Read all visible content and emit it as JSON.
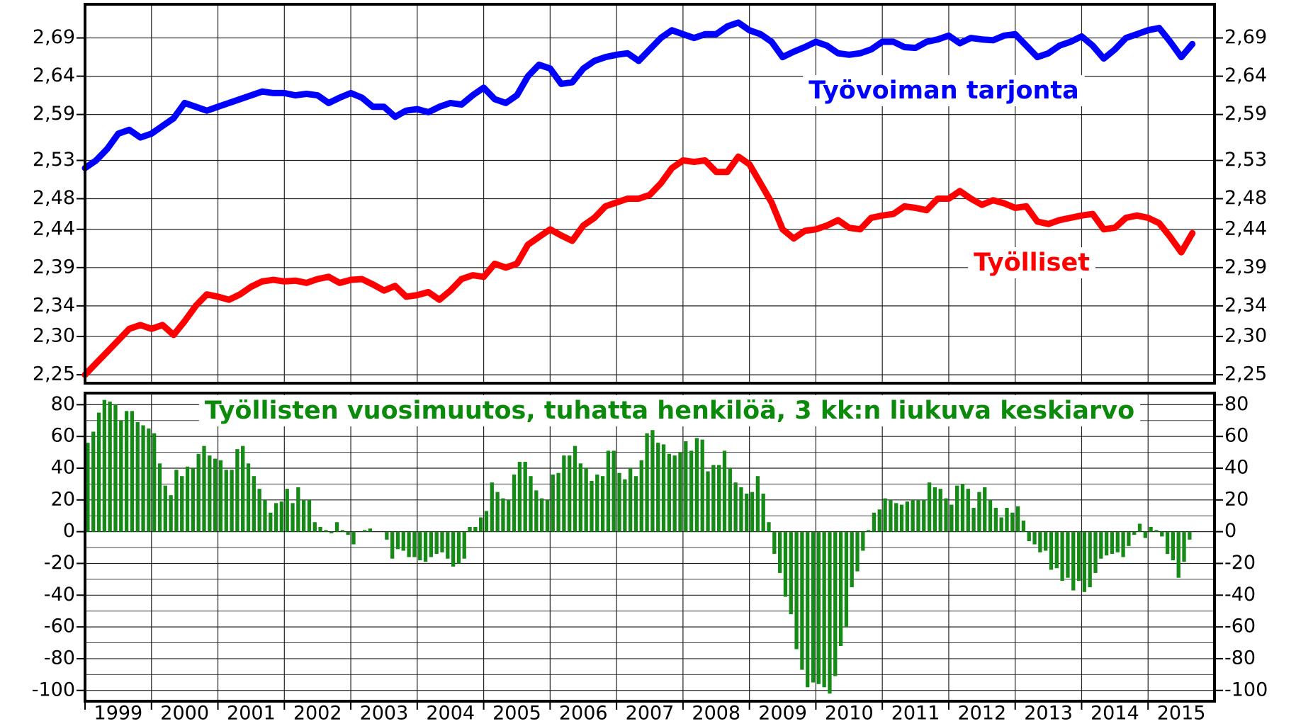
{
  "chart_data": [
    {
      "type": "line",
      "xlim": [
        1999,
        2016
      ],
      "xticks": [
        1999,
        2000,
        2001,
        2002,
        2003,
        2004,
        2005,
        2006,
        2007,
        2008,
        2009,
        2010,
        2011,
        2012,
        2013,
        2014,
        2015
      ],
      "ylim": [
        2.239,
        2.734
      ],
      "yticks": [
        {
          "value": 2.25,
          "label": "2,25"
        },
        {
          "value": 2.3,
          "label": "2,30"
        },
        {
          "value": 2.34,
          "label": "2,34"
        },
        {
          "value": 2.39,
          "label": "2,39"
        },
        {
          "value": 2.44,
          "label": "2,44"
        },
        {
          "value": 2.48,
          "label": "2,48"
        },
        {
          "value": 2.53,
          "label": "2,53"
        },
        {
          "value": 2.59,
          "label": "2,59"
        },
        {
          "value": 2.64,
          "label": "2,64"
        },
        {
          "value": 2.69,
          "label": "2,69"
        }
      ],
      "grid": true,
      "series": [
        {
          "name": "Työvoiman tarjonta",
          "color": "#0000ff",
          "values": [
            2.52,
            2.53,
            2.545,
            2.565,
            2.57,
            2.56,
            2.565,
            2.575,
            2.585,
            2.605,
            2.6,
            2.595,
            2.6,
            2.605,
            2.61,
            2.615,
            2.62,
            2.618,
            2.618,
            2.615,
            2.617,
            2.615,
            2.605,
            2.612,
            2.618,
            2.612,
            2.6,
            2.6,
            2.587,
            2.595,
            2.597,
            2.593,
            2.6,
            2.605,
            2.603,
            2.615,
            2.625,
            2.61,
            2.605,
            2.615,
            2.64,
            2.655,
            2.65,
            2.63,
            2.632,
            2.65,
            2.66,
            2.665,
            2.668,
            2.67,
            2.66,
            2.675,
            2.69,
            2.7,
            2.695,
            2.69,
            2.695,
            2.695,
            2.705,
            2.71,
            2.7,
            2.695,
            2.685,
            2.665,
            2.672,
            2.678,
            2.685,
            2.68,
            2.67,
            2.668,
            2.67,
            2.675,
            2.685,
            2.685,
            2.678,
            2.677,
            2.685,
            2.688,
            2.693,
            2.683,
            2.69,
            2.688,
            2.687,
            2.693,
            2.695,
            2.68,
            2.665,
            2.67,
            2.68,
            2.685,
            2.692,
            2.68,
            2.663,
            2.675,
            2.69,
            2.695,
            2.7,
            2.703,
            2.685,
            2.665,
            2.682
          ]
        },
        {
          "name": "Työlliset",
          "color": "#ff0000",
          "values": [
            2.25,
            2.265,
            2.28,
            2.295,
            2.31,
            2.315,
            2.31,
            2.315,
            2.302,
            2.32,
            2.34,
            2.355,
            2.352,
            2.348,
            2.355,
            2.365,
            2.372,
            2.374,
            2.372,
            2.373,
            2.37,
            2.375,
            2.378,
            2.37,
            2.374,
            2.375,
            2.368,
            2.36,
            2.366,
            2.352,
            2.354,
            2.358,
            2.348,
            2.36,
            2.375,
            2.38,
            2.378,
            2.395,
            2.39,
            2.395,
            2.42,
            2.43,
            2.44,
            2.432,
            2.425,
            2.445,
            2.455,
            2.47,
            2.475,
            2.48,
            2.48,
            2.485,
            2.5,
            2.52,
            2.53,
            2.528,
            2.53,
            2.515,
            2.515,
            2.535,
            2.525,
            2.5,
            2.475,
            2.44,
            2.428,
            2.438,
            2.44,
            2.445,
            2.452,
            2.442,
            2.44,
            2.455,
            2.458,
            2.46,
            2.47,
            2.468,
            2.465,
            2.48,
            2.48,
            2.49,
            2.48,
            2.472,
            2.478,
            2.474,
            2.468,
            2.47,
            2.45,
            2.447,
            2.452,
            2.455,
            2.458,
            2.46,
            2.44,
            2.442,
            2.455,
            2.458,
            2.455,
            2.448,
            2.43,
            2.41,
            2.435
          ]
        }
      ]
    },
    {
      "type": "bar",
      "title": "Työllisten vuosimuutos, tuhatta henkilöä, 3 kk:n liukuva keskiarvo",
      "color": "#168a16",
      "xlim": [
        1999,
        2016
      ],
      "xticks": [
        1999,
        2000,
        2001,
        2002,
        2003,
        2004,
        2005,
        2006,
        2007,
        2008,
        2009,
        2010,
        2011,
        2012,
        2013,
        2014,
        2015
      ],
      "ylim": [
        -106.8,
        87.3
      ],
      "yticks": [
        -100,
        -80,
        -60,
        -40,
        -20,
        0,
        20,
        40,
        60,
        80
      ],
      "yticks_minor": [
        -90,
        -70,
        -50,
        -30,
        -10,
        10,
        30,
        50,
        70
      ],
      "grid": true,
      "values": [
        56,
        63,
        75,
        83,
        82,
        80,
        70,
        76,
        76,
        69,
        67,
        65,
        62,
        43,
        29,
        23,
        39,
        35,
        41,
        40,
        49,
        54,
        48,
        46,
        45,
        39,
        39,
        52,
        54,
        43,
        35,
        27,
        20,
        12,
        18,
        19,
        27,
        18,
        28,
        20,
        20,
        6,
        3,
        1,
        -1,
        6,
        1,
        -2,
        -8,
        0,
        1,
        2,
        0,
        0,
        -5,
        -17,
        -11,
        -12,
        -16,
        -16,
        -18,
        -19,
        -16,
        -14,
        -13,
        -17,
        -22,
        -20,
        -17,
        3,
        3,
        9,
        13,
        31,
        25,
        21,
        20,
        36,
        44,
        44,
        35,
        26,
        21,
        20,
        36,
        37,
        48,
        48,
        54,
        43,
        40,
        32,
        36,
        35,
        51,
        51,
        37,
        33,
        40,
        35,
        45,
        62,
        64,
        56,
        55,
        49,
        48,
        50,
        57,
        51,
        59,
        58,
        38,
        42,
        42,
        51,
        40,
        31,
        28,
        24,
        25,
        35,
        24,
        6,
        -14,
        -26,
        -41,
        -52,
        -74,
        -87,
        -98,
        -95,
        -96,
        -98,
        -102,
        -91,
        -72,
        -60,
        -35,
        -25,
        -12,
        1,
        12,
        14,
        21,
        20,
        18,
        17,
        19,
        20,
        20,
        20,
        31,
        28,
        27,
        21,
        17,
        29,
        30,
        27,
        15,
        25,
        28,
        20,
        15,
        9,
        15,
        12,
        16,
        7,
        -6,
        -8,
        -13,
        -12,
        -24,
        -23,
        -31,
        -29,
        -37,
        -31,
        -38,
        -35,
        -26,
        -17,
        -15,
        -14,
        -13,
        -16,
        -9,
        -2,
        5,
        -4,
        3,
        1,
        -3,
        -14,
        -18,
        -29,
        -19,
        -5
      ]
    }
  ]
}
